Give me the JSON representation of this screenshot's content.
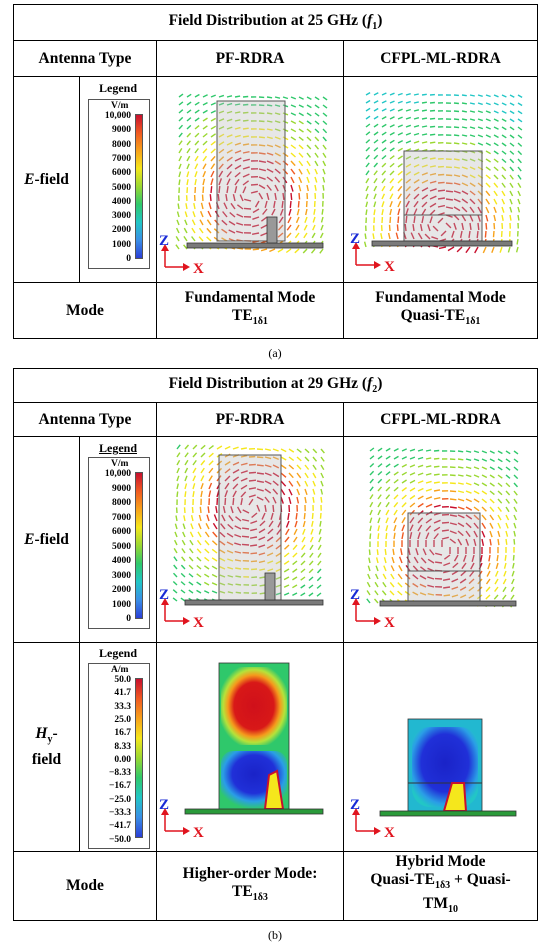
{
  "panel_a": {
    "title_prefix": "Field Distribution at 25 GHz (",
    "title_var": "f",
    "title_sub": "1",
    "title_suffix": ")",
    "col_type": "Antenna Type",
    "col1": "PF-RDRA",
    "col2": "CFPL-ML-RDRA",
    "row_field_ital": "E",
    "row_field_rest": "-field",
    "legend_title": "Legend",
    "legend_unit": "V/m",
    "legend_ticks": [
      "10,000",
      "9000",
      "8000",
      "7000",
      "6000",
      "5000",
      "4000",
      "3000",
      "2000",
      "1000",
      "0"
    ],
    "row_mode": "Mode",
    "mode1_line1": "Fundamental Mode",
    "mode1_line2_base": "TE",
    "mode1_line2_sub": "1δ1",
    "mode2_line1": "Fundamental Mode",
    "mode2_line2_base": "Quasi-TE",
    "mode2_line2_sub": "1δ1",
    "axis_z": "Z",
    "axis_x": "X",
    "caption": "(a)"
  },
  "panel_b": {
    "title_prefix": "Field Distribution at 29 GHz (",
    "title_var": "f",
    "title_sub": "2",
    "title_suffix": ")",
    "col_type": "Antenna Type",
    "col1": "PF-RDRA",
    "col2": "CFPL-ML-RDRA",
    "row_e_ital": "E",
    "row_e_rest": "-field",
    "row_h_ital": "H",
    "row_h_sub": "y",
    "row_h_rest": "-",
    "row_h_line2": "field",
    "e_legend_title": "Legend",
    "e_legend_unit": "V/m",
    "e_legend_ticks": [
      "10,000",
      "9000",
      "8000",
      "7000",
      "6000",
      "5000",
      "4000",
      "3000",
      "2000",
      "1000",
      "0"
    ],
    "h_legend_title": "Legend",
    "h_legend_unit": "A/m",
    "h_legend_ticks": [
      "50.0",
      "41.7",
      "33.3",
      "25.0",
      "16.7",
      "8.33",
      "0.00",
      "−8.33",
      "−16.7",
      "−25.0",
      "−33.3",
      "−41.7",
      "−50.0"
    ],
    "row_mode": "Mode",
    "mode1_line1": "Higher-order Mode:",
    "mode1_line2_base": "TE",
    "mode1_line2_sub": "1δ3",
    "mode2_line1": "Hybrid Mode",
    "mode2_line2_a": "Quasi-TE",
    "mode2_line2_sub": "1δ3",
    "mode2_line2_b": " + Quasi-",
    "mode2_line3": "TM",
    "mode2_line3_sub": "10",
    "axis_z": "Z",
    "axis_x": "X",
    "caption": "(b)"
  },
  "colors": {
    "field_gradient": [
      "#c8102e",
      "#f05a22",
      "#f7a21b",
      "#f5e71c",
      "#9ad832",
      "#2fc86b",
      "#22c6c6",
      "#3a8fe6",
      "#2b3fd6"
    ],
    "axis_red": "#e0141e",
    "axis_blue": "#1a2bd6"
  }
}
